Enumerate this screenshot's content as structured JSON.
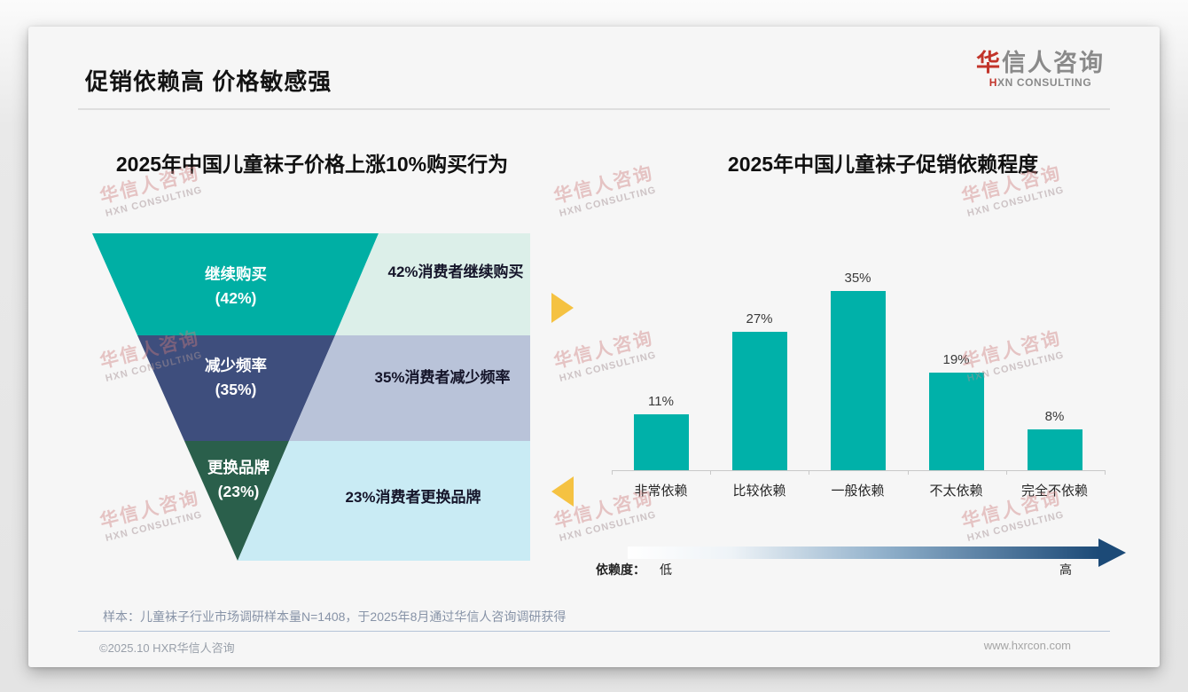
{
  "header": {
    "title": "促销依赖高 价格敏感强",
    "logo": {
      "zh_accent": "华",
      "zh_rest": "信人咨询",
      "en_accent": "H",
      "en_rest": "XN CONSULTING"
    }
  },
  "watermark": {
    "zh": "华信人咨询",
    "en": "HXN CONSULTING"
  },
  "chart_data": [
    {
      "type": "funnel",
      "title": "2025年中国儿童袜子价格上涨10%购买行为",
      "categories": [
        "继续购买",
        "减少频率",
        "更换品牌"
      ],
      "values": [
        42,
        35,
        23
      ],
      "segments": [
        {
          "label": "继续购买",
          "pct_label": "(42%)",
          "value": 42,
          "annotation": "42%消费者继续购买",
          "color": "#00AFA4",
          "annotation_bg": "#DCEFE9"
        },
        {
          "label": "减少频率",
          "pct_label": "(35%)",
          "value": 35,
          "annotation": "35%消费者减少频率",
          "color": "#3E4E7D",
          "annotation_bg": "#B9C3D9"
        },
        {
          "label": "更换品牌",
          "pct_label": "(23%)",
          "value": 23,
          "annotation": "23%消费者更换品牌",
          "color": "#2A5F4B",
          "annotation_bg": "#C9EBF4"
        }
      ]
    },
    {
      "type": "bar",
      "title": "2025年中国儿童袜子促销依赖程度",
      "categories": [
        "非常依赖",
        "比较依赖",
        "一般依赖",
        "不太依赖",
        "完全不依赖"
      ],
      "values": [
        11,
        27,
        35,
        19,
        8
      ],
      "value_labels": [
        "11%",
        "27%",
        "35%",
        "19%",
        "8%"
      ],
      "bar_color": "#00B1A9",
      "ylim": [
        0,
        38
      ],
      "grid": false,
      "legend": false
    }
  ],
  "dependency_axis": {
    "caption": "依赖度：",
    "low": "低",
    "high": "高",
    "gradient_start": "#FFFFFF",
    "gradient_end": "#1C4A77"
  },
  "decor": {
    "pointer_color": "#F5C242"
  },
  "footnote": "样本：儿童袜子行业市场调研样本量N=1408，于2025年8月通过华信人咨询调研获得",
  "footer": {
    "copyright": "©2025.10 HXR华信人咨询",
    "website": "www.hxrcon.com"
  }
}
